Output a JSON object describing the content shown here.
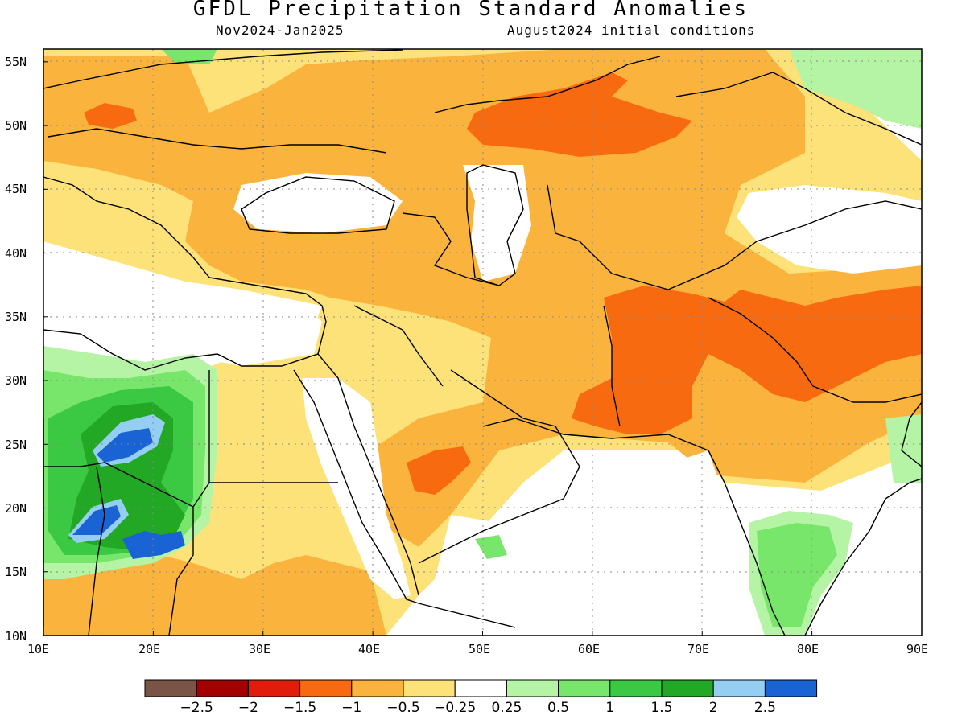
{
  "title": "GFDL Precipitation Standard Anomalies",
  "subtitle_left": "Nov2024-Jan2025",
  "subtitle_right": "August2024 initial conditions",
  "lat_labels": [
    "10N",
    "15N",
    "20N",
    "25N",
    "30N",
    "35N",
    "40N",
    "45N",
    "50N",
    "55N"
  ],
  "lon_labels": [
    "10E",
    "20E",
    "30E",
    "40E",
    "50E",
    "60E",
    "70E",
    "80E",
    "90E"
  ],
  "lat_range": [
    10,
    56
  ],
  "lon_range": [
    10,
    90
  ],
  "colorbar": {
    "colors": [
      "#7a5547",
      "#a30000",
      "#e01d0b",
      "#f86a10",
      "#fab43d",
      "#fde27a",
      "#ffffff",
      "#b5f3a5",
      "#78e66b",
      "#3bc843",
      "#22a825",
      "#94cff3",
      "#1a63d5"
    ],
    "labels": [
      "−2.5",
      "−2",
      "−1.5",
      "−1",
      "−0.5",
      "−0.25",
      "0.25",
      "0.5",
      "1",
      "1.5",
      "2",
      "2.5"
    ]
  },
  "anomaly_colors": {
    "strong_dry": "#f86a10",
    "moderate_dry": "#fab43d",
    "light_dry": "#fde27a",
    "light_wet": "#b5f3a5",
    "moderate_wet": "#78e66b",
    "wet": "#3bc843",
    "very_wet": "#22a825",
    "extreme_wet_light": "#94cff3",
    "extreme_wet": "#1a63d5"
  }
}
